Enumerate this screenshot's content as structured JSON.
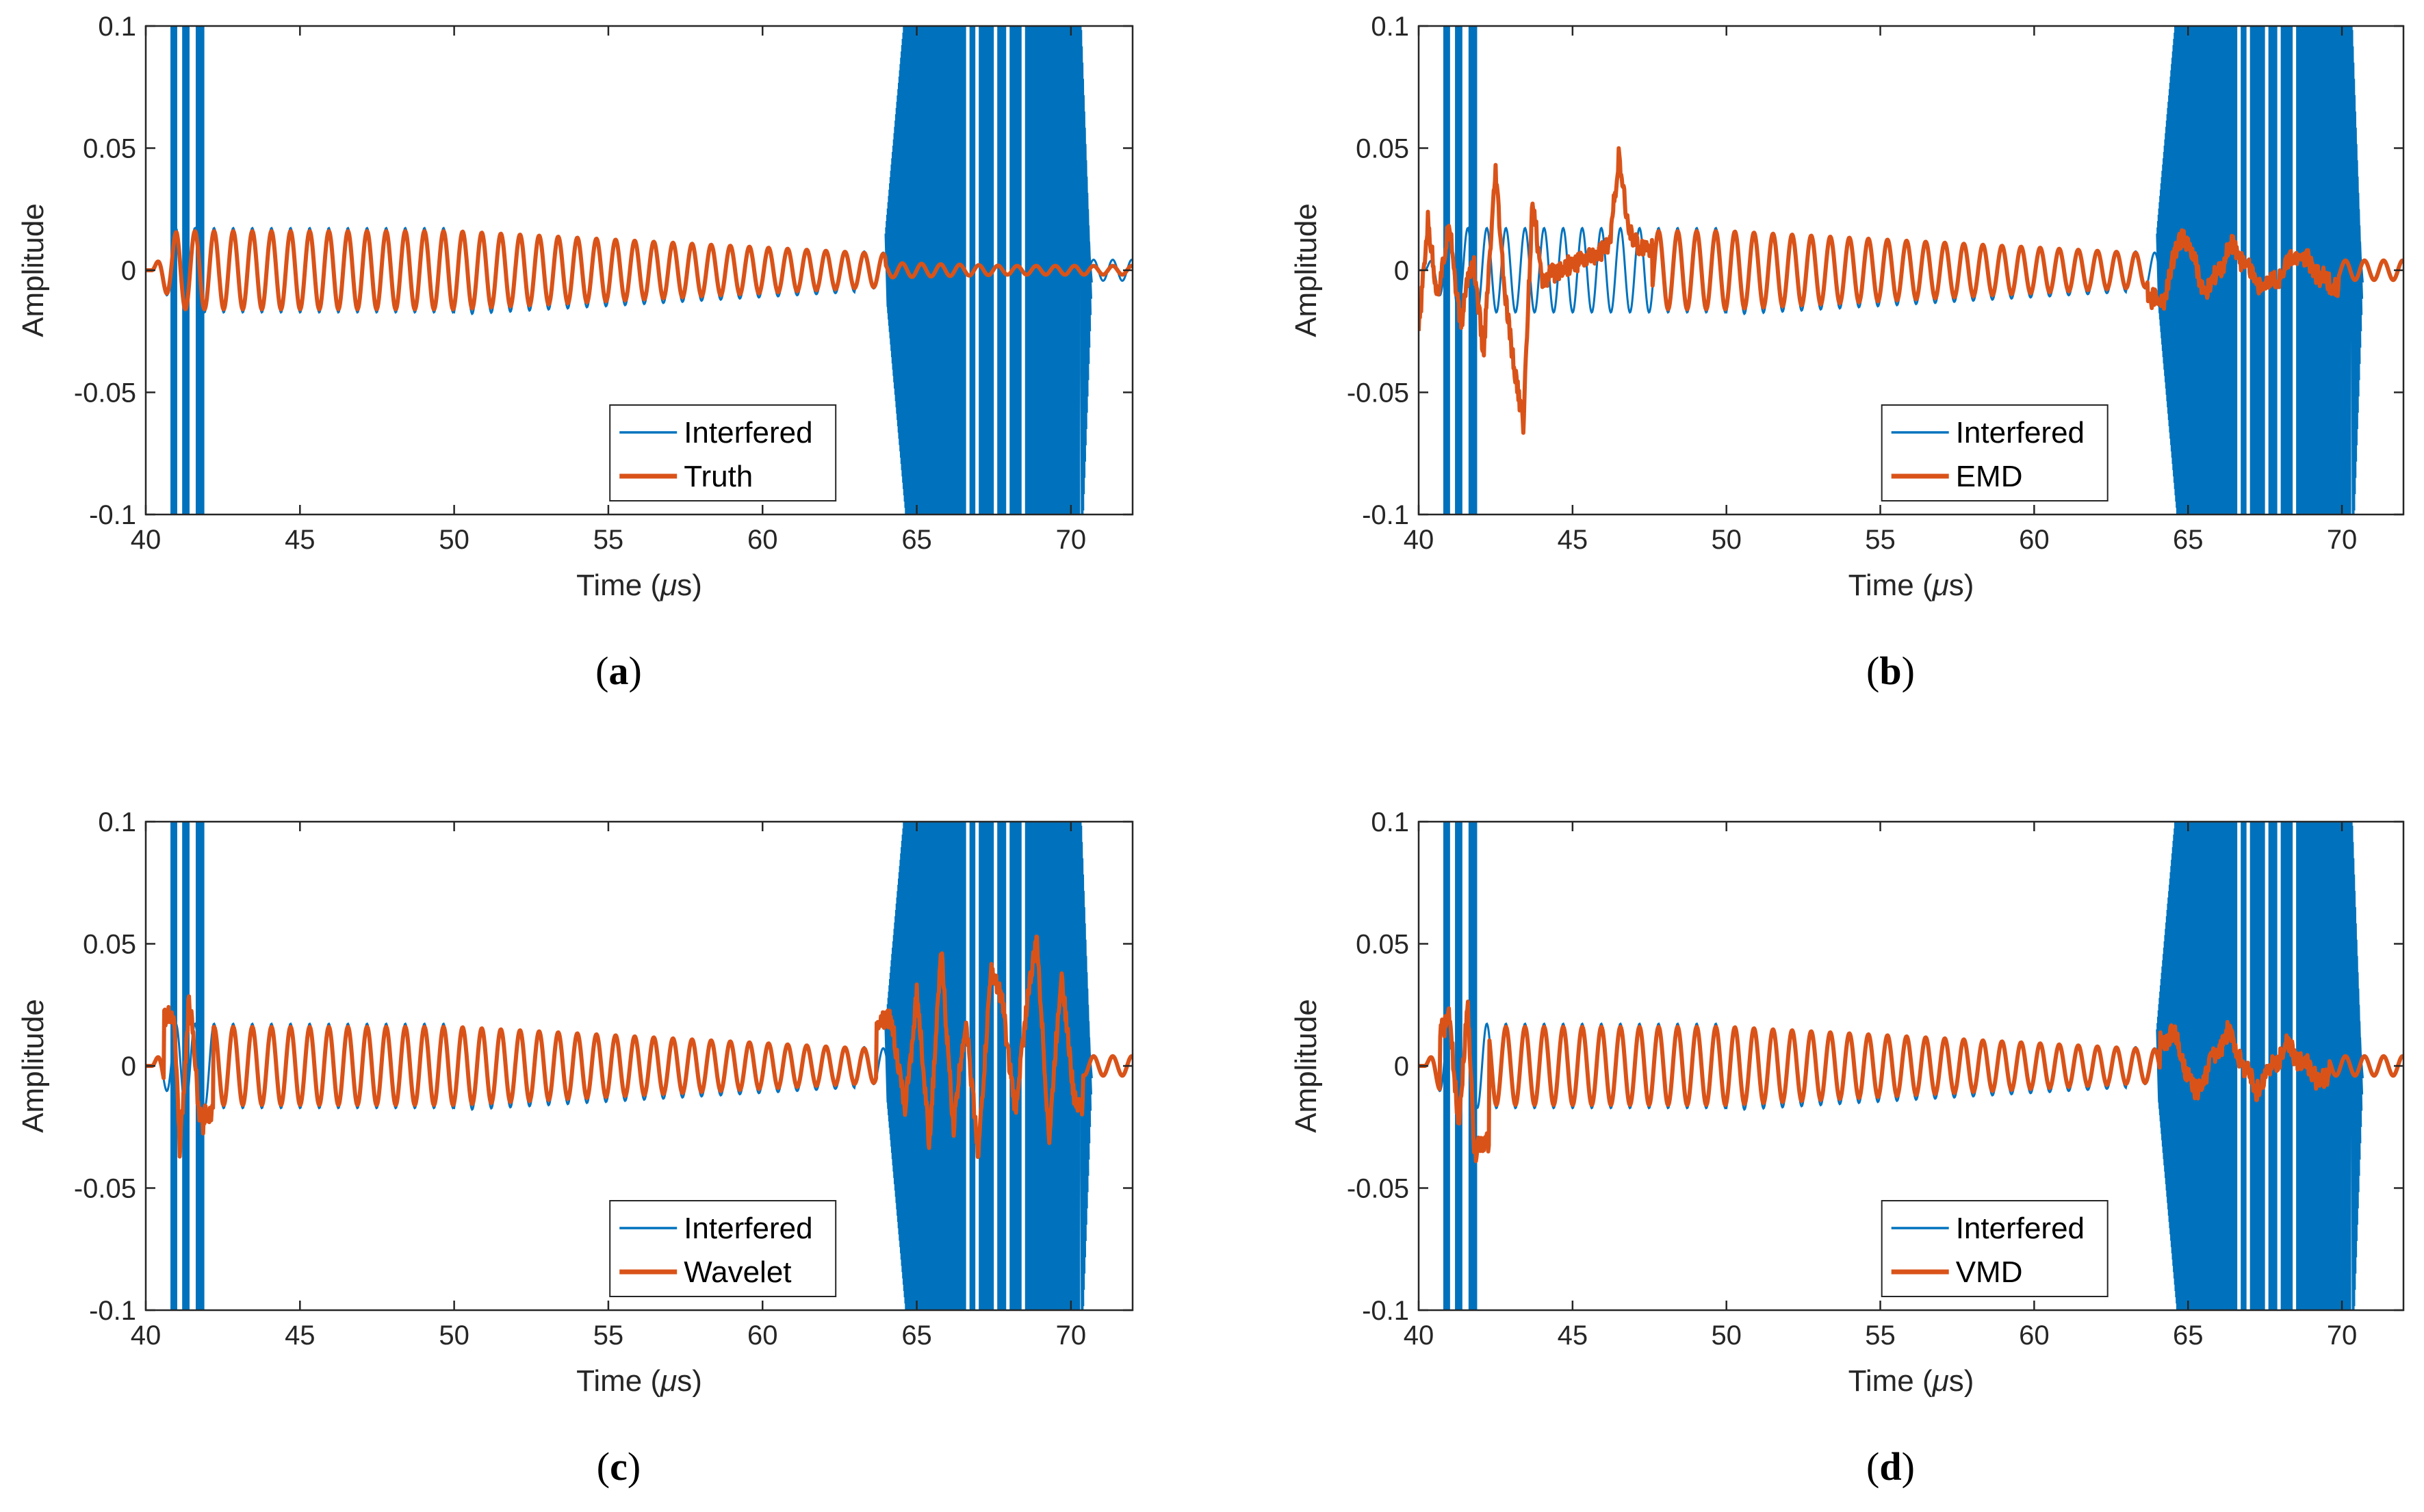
{
  "figure": {
    "colors": {
      "interfered": "#0072BD",
      "estimate": "#D95319",
      "axis": "#262626"
    }
  },
  "chart_data": [
    {
      "panel": "a",
      "caption": {
        "open": "(",
        "letter": "a",
        "close": ")"
      },
      "type": "line",
      "xlabel_prefix": "Time (",
      "xlabel_mu": "μ",
      "xlabel_suffix": "s)",
      "ylabel": "Amplitude",
      "xlim": [
        40,
        72
      ],
      "ylim": [
        -0.1,
        0.1
      ],
      "xticks": [
        "40",
        "45",
        "50",
        "55",
        "60",
        "65",
        "70"
      ],
      "yticks": [
        "-0.1",
        "-0.05",
        "0",
        "0.05",
        "0.1"
      ],
      "legend_position": "bottom-center",
      "series": [
        {
          "name": "Interfered",
          "color": "#0072BD",
          "role": "interfered"
        },
        {
          "name": "Truth",
          "color": "#D95319",
          "role": "estimate"
        }
      ],
      "interference_bursts": [
        [
          40.8,
          41.9
        ],
        [
          64.0,
          70.6
        ]
      ],
      "guided_wave": {
        "start": 40.2,
        "end": 72.0,
        "peak_amplitude": 0.016,
        "peak_time": 50.0,
        "period": 0.62
      },
      "artifacts": []
    },
    {
      "panel": "b",
      "caption": {
        "open": "(",
        "letter": "b",
        "close": ")"
      },
      "type": "line",
      "xlabel_prefix": "Time (",
      "xlabel_mu": "μ",
      "xlabel_suffix": "s)",
      "ylabel": "Amplitude",
      "xlim": [
        40,
        72
      ],
      "ylim": [
        -0.1,
        0.1
      ],
      "xticks": [
        "40",
        "45",
        "50",
        "55",
        "60",
        "65",
        "70"
      ],
      "yticks": [
        "-0.1",
        "-0.05",
        "0",
        "0.05",
        "0.1"
      ],
      "legend_position": "bottom-center",
      "series": [
        {
          "name": "Interfered",
          "color": "#0072BD",
          "role": "interfered"
        },
        {
          "name": "EMD",
          "color": "#D95319",
          "role": "estimate"
        }
      ],
      "interference_bursts": [
        [
          40.8,
          41.9
        ],
        [
          64.0,
          70.6
        ]
      ],
      "guided_wave": {
        "start": 40.2,
        "end": 72.0,
        "peak_amplitude": 0.016,
        "peak_time": 50.0,
        "period": 0.62
      },
      "artifacts": [
        {
          "t": 40.0,
          "v": -0.025
        },
        {
          "t": 40.3,
          "v": 0.02
        },
        {
          "t": 40.6,
          "v": -0.01
        },
        {
          "t": 41.0,
          "v": 0.015
        },
        {
          "t": 41.4,
          "v": -0.02
        },
        {
          "t": 41.8,
          "v": 0.005
        },
        {
          "t": 42.1,
          "v": -0.035
        },
        {
          "t": 42.5,
          "v": 0.04
        },
        {
          "t": 42.8,
          "v": -0.01
        },
        {
          "t": 43.1,
          "v": -0.04
        },
        {
          "t": 43.4,
          "v": -0.063
        },
        {
          "t": 43.7,
          "v": 0.03
        },
        {
          "t": 44.0,
          "v": -0.005
        },
        {
          "t": 44.5,
          "v": 0.0
        },
        {
          "t": 45.5,
          "v": 0.005
        },
        {
          "t": 46.2,
          "v": 0.01
        },
        {
          "t": 46.5,
          "v": 0.046
        },
        {
          "t": 46.8,
          "v": 0.018
        },
        {
          "t": 47.1,
          "v": 0.01
        },
        {
          "t": 64.2,
          "v": -0.012
        },
        {
          "t": 64.8,
          "v": 0.016
        },
        {
          "t": 65.6,
          "v": -0.01
        },
        {
          "t": 66.4,
          "v": 0.01
        },
        {
          "t": 67.5,
          "v": -0.008
        },
        {
          "t": 68.6,
          "v": 0.007
        },
        {
          "t": 69.6,
          "v": -0.006
        }
      ]
    },
    {
      "panel": "c",
      "caption": {
        "open": "(",
        "letter": "c",
        "close": ")"
      },
      "type": "line",
      "xlabel_prefix": "Time (",
      "xlabel_mu": "μ",
      "xlabel_suffix": "s)",
      "ylabel": "Amplitude",
      "xlim": [
        40,
        72
      ],
      "ylim": [
        -0.1,
        0.1
      ],
      "xticks": [
        "40",
        "45",
        "50",
        "55",
        "60",
        "65",
        "70"
      ],
      "yticks": [
        "-0.1",
        "-0.05",
        "0",
        "0.05",
        "0.1"
      ],
      "legend_position": "bottom-center",
      "series": [
        {
          "name": "Interfered",
          "color": "#0072BD",
          "role": "interfered"
        },
        {
          "name": "Wavelet",
          "color": "#D95319",
          "role": "estimate"
        }
      ],
      "interference_bursts": [
        [
          40.8,
          41.9
        ],
        [
          64.0,
          70.6
        ]
      ],
      "guided_wave": {
        "start": 40.2,
        "end": 72.0,
        "peak_amplitude": 0.016,
        "peak_time": 50.0,
        "period": 0.62
      },
      "artifacts": [
        {
          "t": 40.9,
          "v": 0.02
        },
        {
          "t": 41.1,
          "v": -0.035
        },
        {
          "t": 41.4,
          "v": 0.03
        },
        {
          "t": 41.7,
          "v": -0.02
        },
        {
          "t": 64.2,
          "v": 0.02
        },
        {
          "t": 64.6,
          "v": -0.02
        },
        {
          "t": 65.0,
          "v": 0.03
        },
        {
          "t": 65.4,
          "v": -0.03
        },
        {
          "t": 65.8,
          "v": 0.045
        },
        {
          "t": 66.2,
          "v": -0.025
        },
        {
          "t": 66.6,
          "v": 0.02
        },
        {
          "t": 67.0,
          "v": -0.038
        },
        {
          "t": 67.4,
          "v": 0.04
        },
        {
          "t": 67.8,
          "v": 0.025
        },
        {
          "t": 68.2,
          "v": -0.02
        },
        {
          "t": 68.6,
          "v": 0.03
        },
        {
          "t": 68.9,
          "v": 0.05
        },
        {
          "t": 69.3,
          "v": -0.03
        },
        {
          "t": 69.7,
          "v": 0.04
        },
        {
          "t": 70.1,
          "v": -0.015
        }
      ]
    },
    {
      "panel": "d",
      "caption": {
        "open": "(",
        "letter": "d",
        "close": ")"
      },
      "type": "line",
      "xlabel_prefix": "Time (",
      "xlabel_mu": "μ",
      "xlabel_suffix": "s)",
      "ylabel": "Amplitude",
      "xlim": [
        40,
        72
      ],
      "ylim": [
        -0.1,
        0.1
      ],
      "xticks": [
        "40",
        "45",
        "50",
        "55",
        "60",
        "65",
        "70"
      ],
      "yticks": [
        "-0.1",
        "-0.05",
        "0",
        "0.05",
        "0.1"
      ],
      "legend_position": "bottom-center",
      "series": [
        {
          "name": "Interfered",
          "color": "#0072BD",
          "role": "interfered"
        },
        {
          "name": "VMD",
          "color": "#D95319",
          "role": "estimate"
        }
      ],
      "interference_bursts": [
        [
          40.8,
          41.9
        ],
        [
          64.0,
          70.6
        ]
      ],
      "guided_wave": {
        "start": 40.2,
        "end": 72.0,
        "peak_amplitude": 0.016,
        "peak_time": 50.0,
        "period": 0.62
      },
      "artifacts": [
        {
          "t": 41.0,
          "v": 0.015
        },
        {
          "t": 41.3,
          "v": -0.018
        },
        {
          "t": 41.6,
          "v": 0.02
        },
        {
          "t": 41.8,
          "v": -0.032
        },
        {
          "t": 64.6,
          "v": 0.012
        },
        {
          "t": 65.2,
          "v": -0.012
        },
        {
          "t": 66.3,
          "v": 0.014
        },
        {
          "t": 67.2,
          "v": -0.01
        },
        {
          "t": 68.2,
          "v": 0.008
        },
        {
          "t": 69.3,
          "v": -0.006
        }
      ]
    }
  ]
}
